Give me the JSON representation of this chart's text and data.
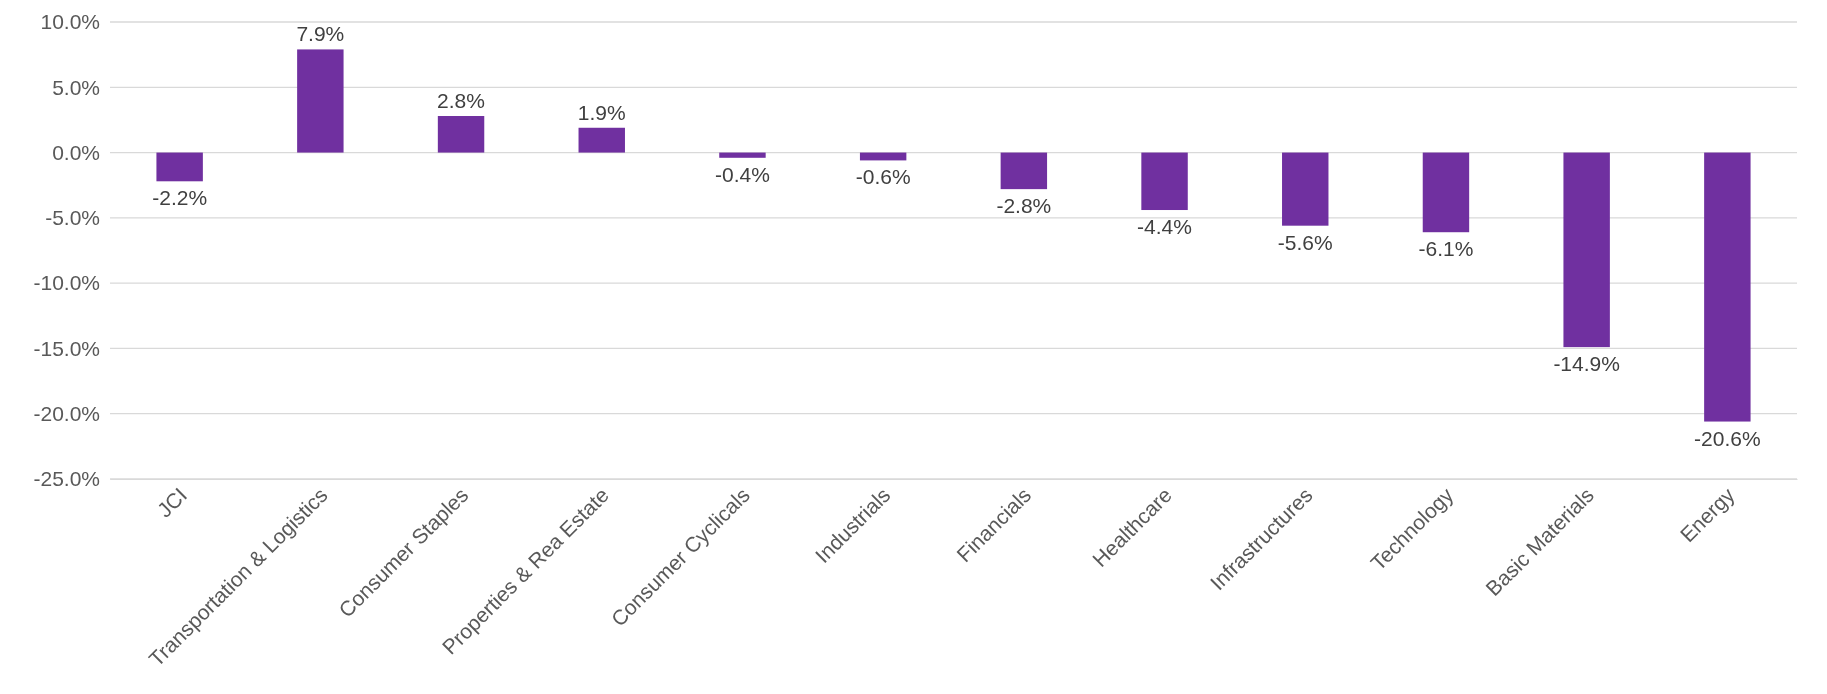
{
  "chart_data": {
    "type": "bar",
    "categories": [
      "JCI",
      "Transportation & Logistics",
      "Consumer Staples",
      "Properties & Rea Estate",
      "Consumer Cyclicals",
      "Industrials",
      "Financials",
      "Healthcare",
      "Infrastructures",
      "Technology",
      "Basic Materials",
      "Energy"
    ],
    "values": [
      -2.2,
      7.9,
      2.8,
      1.9,
      -0.4,
      -0.6,
      -2.8,
      -4.4,
      -5.6,
      -6.1,
      -14.9,
      -20.6
    ],
    "color": "#7030a0",
    "value_labels": [
      "-2.2%",
      "7.9%",
      "2.8%",
      "1.9%",
      "-0.4%",
      "-0.6%",
      "-2.8%",
      "-4.4%",
      "-5.6%",
      "-6.1%",
      "-14.9%",
      "-20.6%"
    ],
    "ylim": [
      -25,
      10
    ],
    "yticks": [
      {
        "value": -25,
        "label": "-25.0%"
      },
      {
        "value": -20,
        "label": "-20.0%"
      },
      {
        "value": -15,
        "label": "-15.0%"
      },
      {
        "value": -10,
        "label": "-10.0%"
      },
      {
        "value": -5,
        "label": "-5.0%"
      },
      {
        "value": 0,
        "label": "0.0%"
      },
      {
        "value": 5,
        "label": "5.0%"
      },
      {
        "value": 10,
        "label": "10.0%"
      }
    ],
    "grid": "y"
  }
}
